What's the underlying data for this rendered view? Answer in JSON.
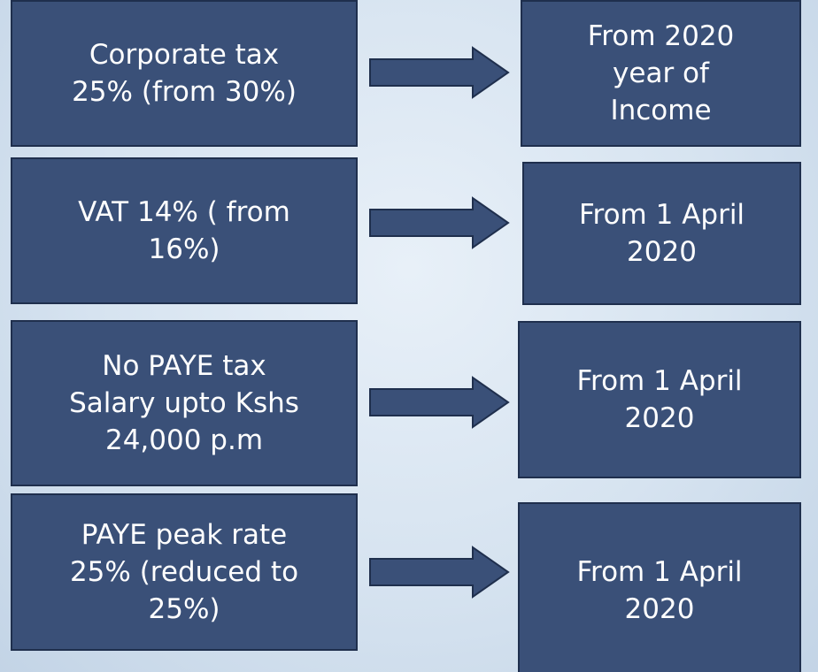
{
  "rows": [
    {
      "left": [
        "Corporate tax",
        "25% (from 30%)"
      ],
      "right": [
        "From 2020",
        "year of",
        "Income"
      ]
    },
    {
      "left": [
        "VAT 14% ( from",
        "16%)"
      ],
      "right": [
        "From 1 April",
        "2020"
      ]
    },
    {
      "left": [
        "No PAYE tax",
        "Salary upto Kshs",
        "24,000 p.m"
      ],
      "right": [
        "From 1 April",
        "2020"
      ]
    },
    {
      "left": [
        "PAYE peak rate",
        "25%  (reduced to",
        "25%)"
      ],
      "right": [
        "From 1 April",
        "2020"
      ]
    }
  ]
}
